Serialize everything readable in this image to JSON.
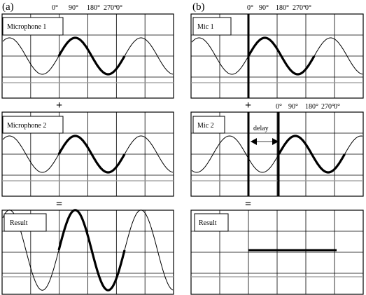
{
  "figure": {
    "panel_a_letter": "(a)",
    "panel_b_letter": "(b)",
    "phase_ticks": [
      "0°",
      "90°",
      "180°",
      "270°",
      "0°"
    ],
    "plus_symbol": "+",
    "equals_symbol": "=",
    "panel_a": {
      "top_label": "Microphone 1",
      "middle_label": "Microphone 2",
      "bottom_label": "Result"
    },
    "panel_b": {
      "top_label": "Mic 1",
      "middle_label": "Mic 2",
      "bottom_label": "Result",
      "delay_label": "delay",
      "delay_phase_degrees": 90
    },
    "result_a_amplitude_ratio": 2,
    "result_b_amplitude_ratio": 0
  }
}
